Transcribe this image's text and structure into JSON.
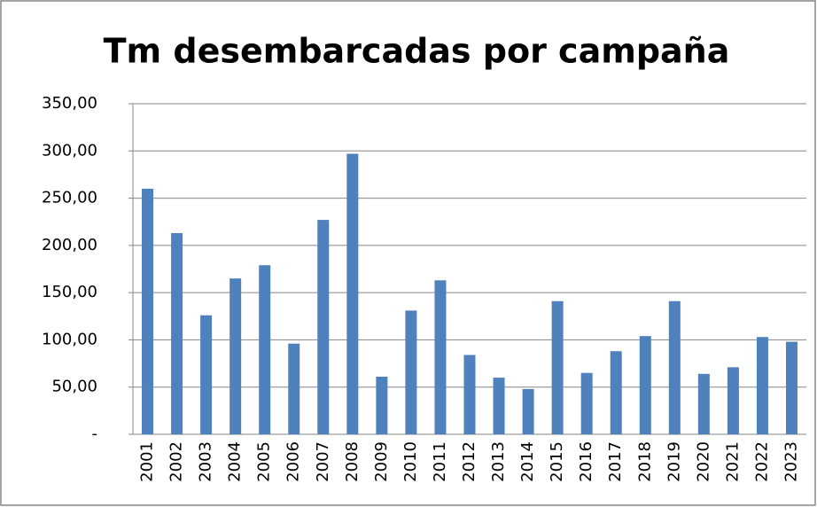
{
  "chart_data": {
    "type": "bar",
    "title": "Tm desembarcadas por campaña",
    "categories": [
      "2001",
      "2002",
      "2003",
      "2004",
      "2005",
      "2006",
      "2007",
      "2008",
      "2009",
      "2010",
      "2011",
      "2012",
      "2013",
      "2014",
      "2015",
      "2016",
      "2017",
      "2018",
      "2019",
      "2020",
      "2021",
      "2022",
      "2023"
    ],
    "values": [
      260,
      213,
      126,
      165,
      179,
      96,
      227,
      297,
      61,
      131,
      163,
      84,
      60,
      48,
      141,
      65,
      88,
      104,
      141,
      64,
      71,
      103,
      98
    ],
    "color": "#4f81bd",
    "ylim": [
      0,
      350
    ],
    "yticks": [
      {
        "value": 0,
        "label": "-"
      },
      {
        "value": 50,
        "label": "50,00"
      },
      {
        "value": 100,
        "label": "100,00"
      },
      {
        "value": 150,
        "label": "150,00"
      },
      {
        "value": 200,
        "label": "200,00"
      },
      {
        "value": 250,
        "label": "250,00"
      },
      {
        "value": 300,
        "label": "300,00"
      },
      {
        "value": 350,
        "label": "350,00"
      }
    ],
    "grid": true
  }
}
